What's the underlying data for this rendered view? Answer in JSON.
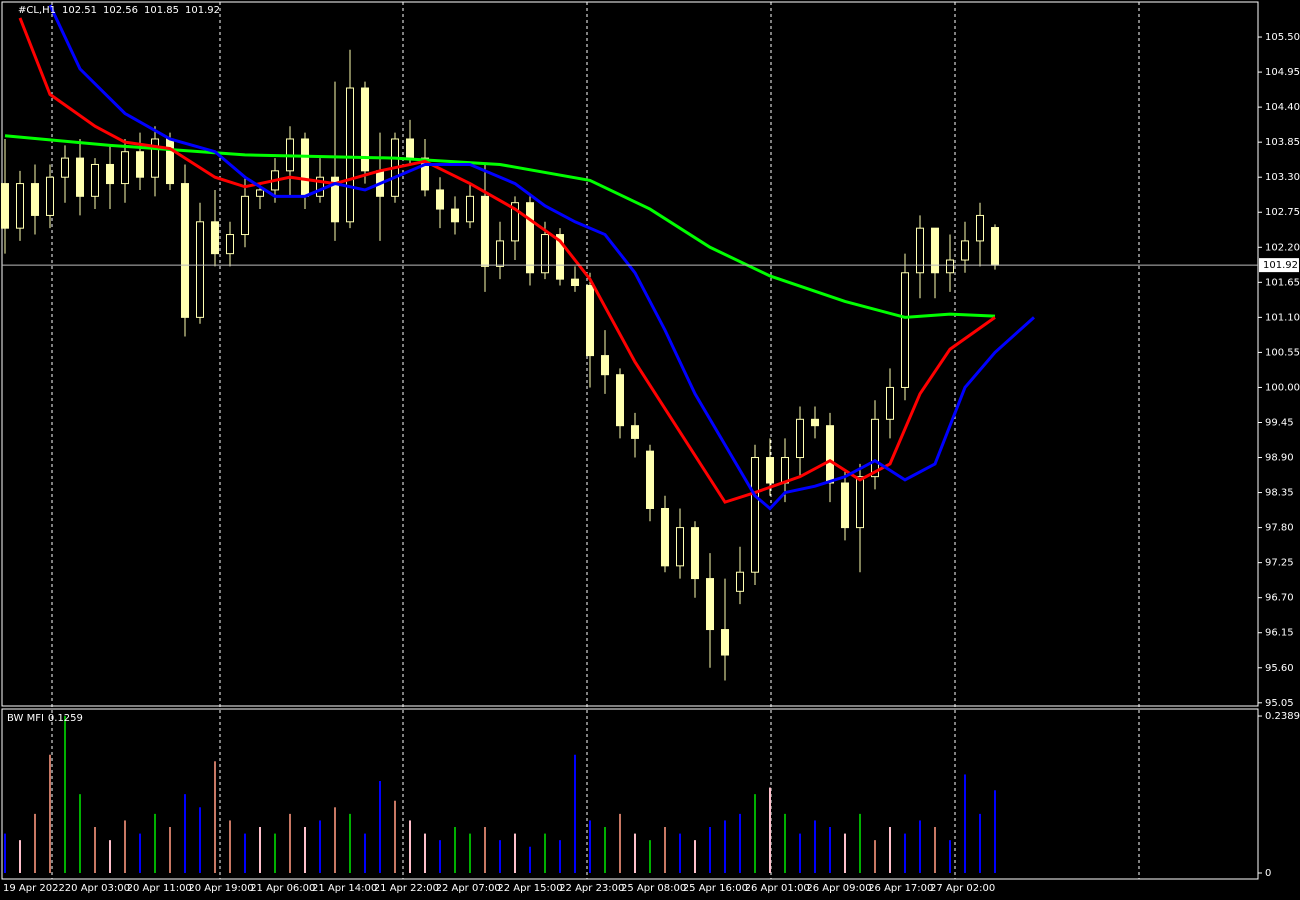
{
  "chart_data": [
    {
      "type": "candlestick",
      "title": "#CL,H1",
      "color": "#ffffb0",
      "ylim": [
        95.0,
        106.05
      ],
      "yticks": [
        {
          "value": 105.5,
          "label": "105.50"
        },
        {
          "value": 104.95,
          "label": "104.95"
        },
        {
          "value": 104.4,
          "label": "104.40"
        },
        {
          "value": 103.85,
          "label": "103.85"
        },
        {
          "value": 103.3,
          "label": "103.30"
        },
        {
          "value": 102.75,
          "label": "102.75"
        },
        {
          "value": 102.2,
          "label": "102.20"
        },
        {
          "value": 101.65,
          "label": "101.65"
        },
        {
          "value": 101.1,
          "label": "101.10"
        },
        {
          "value": 100.55,
          "label": "100.55"
        },
        {
          "value": 100,
          "label": "100.00"
        },
        {
          "value": 99.45,
          "label": "99.45"
        },
        {
          "value": 98.9,
          "label": "98.90"
        },
        {
          "value": 98.35,
          "label": "98.35"
        },
        {
          "value": 97.8,
          "label": "97.80"
        },
        {
          "value": 97.25,
          "label": "97.25"
        },
        {
          "value": 96.7,
          "label": "96.70"
        },
        {
          "value": 96.15,
          "label": "96.15"
        },
        {
          "value": 95.6,
          "label": "95.60"
        },
        {
          "value": 95.05,
          "label": "95.05"
        }
      ],
      "x_labels": [
        "19 Apr 2022",
        "20 Apr 03:00",
        "20 Apr 11:00",
        "20 Apr 19:00",
        "21 Apr 06:00",
        "21 Apr 14:00",
        "21 Apr 22:00",
        "22 Apr 07:00",
        "22 Apr 15:00",
        "22 Apr 23:00",
        "25 Apr 08:00",
        "25 Apr 16:00",
        "26 Apr 01:00",
        "26 Apr 09:00",
        "26 Apr 17:00",
        "27 Apr 02:00"
      ],
      "open": [
        103.2,
        102.5,
        103.2,
        102.7,
        103.3,
        103.6,
        103.0,
        103.5,
        103.2,
        103.7,
        103.3,
        103.9,
        103.2,
        101.1,
        102.6,
        102.1,
        102.4,
        103.0,
        103.1,
        103.4,
        103.9,
        103.0,
        103.3,
        102.6,
        104.7,
        103.4,
        103.0,
        103.9,
        103.6,
        103.1,
        102.8,
        102.6,
        103.0,
        101.9,
        102.3,
        102.9,
        101.8,
        102.4,
        101.7,
        101.6,
        100.5,
        100.2,
        99.4,
        99.0,
        98.1,
        97.2,
        97.8,
        97.0,
        96.2,
        96.8,
        97.1,
        98.9,
        98.5,
        98.9,
        99.5,
        99.4,
        98.5,
        97.8,
        98.6,
        99.5,
        100.0,
        101.8,
        102.5,
        101.8,
        102.0,
        102.3,
        102.51
      ],
      "high": [
        103.9,
        103.4,
        103.5,
        103.5,
        103.8,
        103.9,
        103.6,
        103.8,
        103.9,
        104.0,
        104.1,
        104.0,
        103.5,
        102.9,
        103.1,
        102.6,
        103.3,
        103.2,
        103.6,
        104.1,
        104.0,
        103.6,
        104.8,
        105.3,
        104.8,
        104.0,
        104.0,
        104.2,
        103.9,
        103.3,
        103.0,
        103.2,
        103.5,
        102.6,
        103.0,
        103.0,
        102.6,
        102.5,
        101.9,
        101.8,
        100.9,
        100.3,
        99.6,
        99.1,
        98.3,
        98.1,
        97.9,
        97.4,
        97.0,
        97.5,
        99.1,
        99.2,
        99.2,
        99.7,
        99.7,
        99.6,
        98.7,
        98.8,
        99.8,
        100.3,
        102.1,
        102.7,
        102.5,
        102.4,
        102.6,
        102.9,
        102.56
      ],
      "low": [
        102.1,
        102.3,
        102.4,
        102.5,
        102.9,
        102.7,
        102.8,
        102.8,
        102.9,
        103.1,
        103.0,
        103.1,
        100.8,
        101.0,
        101.9,
        101.9,
        102.2,
        102.8,
        102.9,
        103.0,
        102.8,
        102.9,
        102.3,
        102.5,
        103.2,
        102.3,
        102.9,
        103.5,
        103.0,
        102.5,
        102.4,
        102.5,
        101.5,
        101.7,
        102.0,
        101.6,
        101.7,
        101.6,
        101.5,
        100.0,
        99.9,
        99.2,
        98.9,
        97.9,
        97.1,
        97.0,
        96.7,
        95.6,
        95.4,
        96.6,
        96.9,
        98.3,
        98.2,
        98.6,
        99.2,
        98.2,
        97.6,
        97.1,
        98.4,
        99.2,
        99.8,
        101.4,
        101.4,
        101.5,
        101.8,
        101.9,
        101.85
      ],
      "close": [
        102.5,
        103.2,
        102.7,
        103.3,
        103.6,
        103.0,
        103.5,
        103.2,
        103.7,
        103.3,
        103.9,
        103.2,
        101.1,
        102.6,
        102.1,
        102.4,
        103.0,
        103.1,
        103.4,
        103.9,
        103.0,
        103.3,
        102.6,
        104.7,
        103.4,
        103.0,
        103.9,
        103.6,
        103.1,
        102.8,
        102.6,
        103.0,
        101.9,
        102.3,
        102.9,
        101.8,
        102.4,
        101.7,
        101.6,
        100.5,
        100.2,
        99.4,
        99.2,
        98.1,
        97.2,
        97.8,
        97.0,
        96.2,
        95.8,
        97.1,
        98.9,
        98.5,
        98.9,
        99.5,
        99.4,
        98.5,
        97.8,
        98.6,
        99.5,
        100.0,
        101.8,
        102.5,
        101.8,
        102.0,
        102.3,
        102.7,
        101.92
      ],
      "lines": [
        {
          "color": "#00ff00",
          "x": [
            0,
            7,
            16,
            26,
            33,
            39,
            43,
            47,
            51,
            56,
            60,
            63,
            66
          ],
          "values": [
            103.95,
            103.8,
            103.65,
            103.6,
            103.5,
            103.25,
            102.8,
            102.2,
            101.75,
            101.35,
            101.1,
            101.15,
            101.12
          ]
        },
        {
          "color": "#ff0000",
          "x": [
            1,
            3,
            6,
            8,
            11,
            14,
            16,
            19,
            22,
            25,
            28,
            31,
            34,
            37,
            39,
            42,
            45,
            48,
            50,
            53,
            55,
            57,
            59,
            61,
            63,
            66
          ],
          "values": [
            105.8,
            104.6,
            104.1,
            103.85,
            103.75,
            103.3,
            103.15,
            103.3,
            103.2,
            103.4,
            103.55,
            103.2,
            102.8,
            102.3,
            101.7,
            100.4,
            99.3,
            98.2,
            98.35,
            98.6,
            98.85,
            98.55,
            98.8,
            99.9,
            100.6,
            101.1
          ]
        },
        {
          "color": "#0000ff",
          "x": [
            3,
            5,
            8,
            11,
            14,
            16,
            18,
            20,
            22,
            24,
            26,
            28,
            31,
            34,
            36,
            38,
            40,
            42,
            44,
            46,
            48,
            50,
            51,
            52,
            54,
            56,
            58,
            60,
            62,
            64,
            66,
            68.6
          ],
          "values": [
            106.0,
            105.0,
            104.3,
            103.9,
            103.7,
            103.3,
            103.0,
            103.0,
            103.2,
            103.1,
            103.3,
            103.5,
            103.5,
            103.2,
            102.85,
            102.6,
            102.4,
            101.8,
            100.9,
            99.9,
            99.1,
            98.3,
            98.1,
            98.35,
            98.45,
            98.6,
            98.85,
            98.55,
            98.8,
            100.0,
            100.55,
            101.1
          ]
        }
      ]
    },
    {
      "type": "bar",
      "title": "BW MFI",
      "ylim": [
        0,
        0.2496
      ],
      "yticks": [
        0.2389,
        0
      ],
      "values": [
        0.06,
        0.05,
        0.09,
        0.18,
        0.2389,
        0.12,
        0.07,
        0.05,
        0.08,
        0.06,
        0.09,
        0.07,
        0.12,
        0.1,
        0.17,
        0.08,
        0.06,
        0.07,
        0.06,
        0.09,
        0.07,
        0.08,
        0.1,
        0.09,
        0.06,
        0.14,
        0.11,
        0.08,
        0.06,
        0.05,
        0.07,
        0.06,
        0.07,
        0.05,
        0.06,
        0.04,
        0.06,
        0.05,
        0.18,
        0.08,
        0.07,
        0.09,
        0.06,
        0.05,
        0.07,
        0.06,
        0.05,
        0.07,
        0.08,
        0.09,
        0.12,
        0.13,
        0.09,
        0.06,
        0.08,
        0.07,
        0.06,
        0.09,
        0.05,
        0.07,
        0.06,
        0.08,
        0.07,
        0.05,
        0.15,
        0.09,
        0.1259
      ],
      "colors": [
        "#0000ff",
        "#ffc0cb",
        "#c87864",
        "#c87864",
        "#00b000",
        "#00b000",
        "#c87864",
        "#ffc0cb",
        "#c87864",
        "#0000ff",
        "#00b000",
        "#c87864",
        "#0000ff",
        "#0000ff",
        "#c87864",
        "#c87864",
        "#0000ff",
        "#ffc0cb",
        "#00b000",
        "#c87864",
        "#ffc0cb",
        "#0000ff",
        "#c87864",
        "#00b000",
        "#0000ff",
        "#0000ff",
        "#c87864",
        "#ffc0cb",
        "#ffc0cb",
        "#0000ff",
        "#00b000",
        "#00b000",
        "#c87864",
        "#0000ff",
        "#ffc0cb",
        "#0000ff",
        "#00b000",
        "#0000ff",
        "#0000ff",
        "#0000ff",
        "#00b000",
        "#c87864",
        "#ffc0cb",
        "#00b000",
        "#c87864",
        "#0000ff",
        "#ffc0cb",
        "#0000ff",
        "#0000ff",
        "#0000ff",
        "#00b000",
        "#ffc0cb",
        "#00b000",
        "#0000ff",
        "#0000ff",
        "#0000ff",
        "#ffc0cb",
        "#00b000",
        "#c87864",
        "#ffc0cb",
        "#0000ff",
        "#0000ff",
        "#c87864",
        "#0000ff",
        "#0000ff",
        "#0000ff",
        "#0000ff"
      ]
    }
  ]
}
